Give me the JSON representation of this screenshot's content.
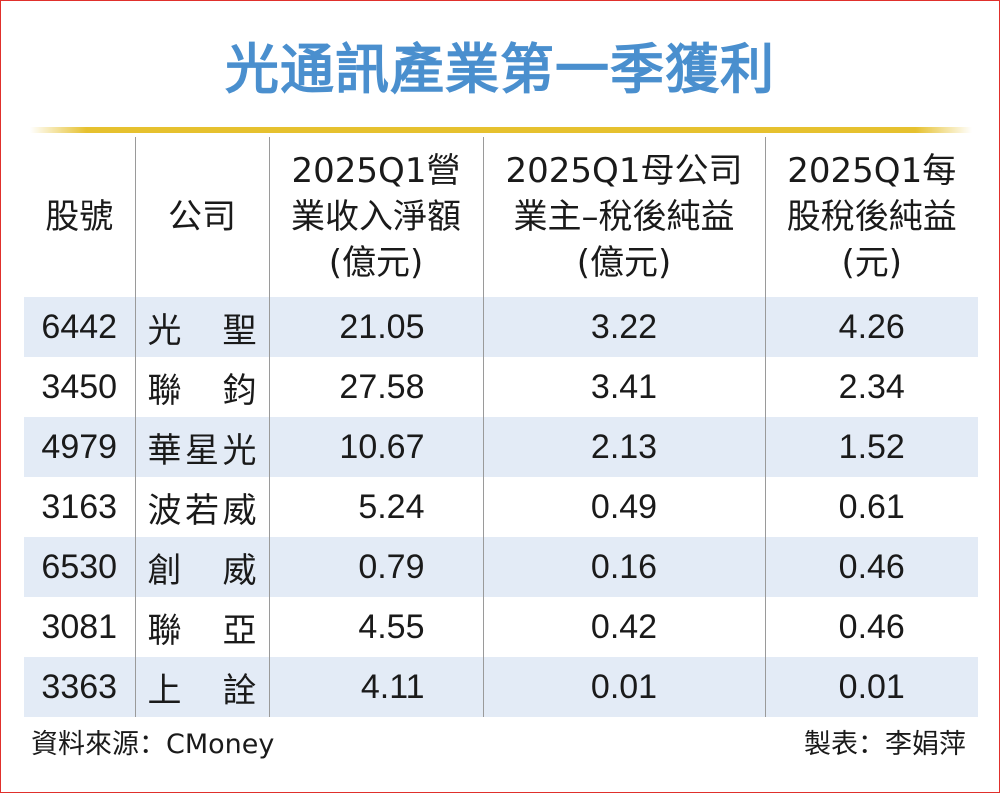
{
  "title": "光通訊產業第一季獲利",
  "headers": {
    "code": "股號",
    "company": "公司",
    "revenue": [
      "2025Q1營",
      "業收入淨額",
      "(億元)"
    ],
    "net_income": [
      "2025Q1母公司",
      "業主–稅後純益",
      "(億元)"
    ],
    "eps": [
      "2025Q1每",
      "股稅後純益",
      "(元)"
    ]
  },
  "rows": [
    {
      "code": "6442",
      "company": "光　聖",
      "revenue": "21.05",
      "net_income": "3.22",
      "eps": "4.26"
    },
    {
      "code": "3450",
      "company": "聯　鈞",
      "revenue": "27.58",
      "net_income": "3.41",
      "eps": "2.34"
    },
    {
      "code": "4979",
      "company": "華星光",
      "revenue": "10.67",
      "net_income": "2.13",
      "eps": "1.52"
    },
    {
      "code": "3163",
      "company": "波若威",
      "revenue": "5.24",
      "net_income": "0.49",
      "eps": "0.61"
    },
    {
      "code": "6530",
      "company": "創　威",
      "revenue": "0.79",
      "net_income": "0.16",
      "eps": "0.46"
    },
    {
      "code": "3081",
      "company": "聯　亞",
      "revenue": "4.55",
      "net_income": "0.42",
      "eps": "0.46"
    },
    {
      "code": "3363",
      "company": "上　詮",
      "revenue": "4.11",
      "net_income": "0.01",
      "eps": "0.01"
    }
  ],
  "footer": {
    "source": "資料來源：CMoney",
    "author": "製表：李娟萍"
  },
  "colors": {
    "title": "#4a8fce",
    "rule": "#e6c12f",
    "row_stripe": "#e3ebf6",
    "border": "#e0302c"
  }
}
